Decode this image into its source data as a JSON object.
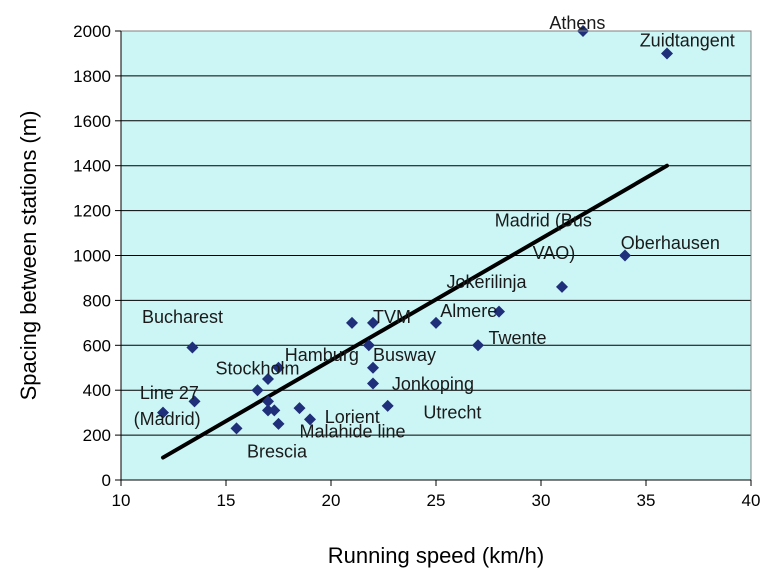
{
  "chart_data": {
    "type": "scatter",
    "title": "",
    "xlabel": "Running speed (km/h)",
    "ylabel": "Spacing between stations (m)",
    "xlim": [
      10,
      40
    ],
    "ylim": [
      0,
      2000
    ],
    "xticks": [
      10,
      15,
      20,
      25,
      30,
      35,
      40
    ],
    "yticks": [
      0,
      200,
      400,
      600,
      800,
      1000,
      1200,
      1400,
      1600,
      1800,
      2000
    ],
    "grid": "horizontal",
    "colors": {
      "plot_bg": "#ccf5f5",
      "marker": "#1f2f7a",
      "trend": "#000000",
      "grid": "#000000"
    },
    "points": [
      {
        "x": 32,
        "y": 2000
      },
      {
        "x": 36,
        "y": 1900
      },
      {
        "x": 34,
        "y": 1000
      },
      {
        "x": 31,
        "y": 860
      },
      {
        "x": 28,
        "y": 750
      },
      {
        "x": 25,
        "y": 700
      },
      {
        "x": 21,
        "y": 700
      },
      {
        "x": 22,
        "y": 700
      },
      {
        "x": 27,
        "y": 600
      },
      {
        "x": 13.4,
        "y": 590
      },
      {
        "x": 21.8,
        "y": 600
      },
      {
        "x": 22,
        "y": 500
      },
      {
        "x": 22,
        "y": 430
      },
      {
        "x": 17.5,
        "y": 500
      },
      {
        "x": 17,
        "y": 450
      },
      {
        "x": 16.5,
        "y": 400
      },
      {
        "x": 13.5,
        "y": 350
      },
      {
        "x": 12,
        "y": 300
      },
      {
        "x": 17,
        "y": 350
      },
      {
        "x": 17,
        "y": 310
      },
      {
        "x": 17.3,
        "y": 310
      },
      {
        "x": 18.5,
        "y": 320
      },
      {
        "x": 19,
        "y": 270
      },
      {
        "x": 22.7,
        "y": 330
      },
      {
        "x": 17.5,
        "y": 250
      },
      {
        "x": 15.5,
        "y": 230
      }
    ],
    "trendline": [
      {
        "x": 12,
        "y": 100
      },
      {
        "x": 36,
        "y": 1400
      }
    ],
    "annotations": [
      {
        "text": "Athens",
        "x": 30.4,
        "y": 2010
      },
      {
        "text": "Zuidtangent",
        "x": 34.7,
        "y": 1930
      },
      {
        "text": "Madrid (Bus",
        "x": 27.8,
        "y": 1130
      },
      {
        "text": "VAO)",
        "x": 29.6,
        "y": 985
      },
      {
        "text": "Oberhausen",
        "x": 33.8,
        "y": 1030
      },
      {
        "text": "Jokerilinja",
        "x": 25.5,
        "y": 855
      },
      {
        "text": "TVM",
        "x": 22,
        "y": 700
      },
      {
        "text": "Almere",
        "x": 25.2,
        "y": 725
      },
      {
        "text": "Bucharest",
        "x": 11,
        "y": 700
      },
      {
        "text": "Twente",
        "x": 27.5,
        "y": 605
      },
      {
        "text": "Hamburg",
        "x": 17.8,
        "y": 530
      },
      {
        "text": "Busway",
        "x": 22,
        "y": 530
      },
      {
        "text": "Stockholm",
        "x": 14.5,
        "y": 470
      },
      {
        "text": "Jonkoping",
        "x": 22.9,
        "y": 400
      },
      {
        "text": "Line 27",
        "x": 10.9,
        "y": 360
      },
      {
        "text": "(Madrid)",
        "x": 10.6,
        "y": 245
      },
      {
        "text": "Utrecht",
        "x": 24.4,
        "y": 275
      },
      {
        "text": "Lorient",
        "x": 19.7,
        "y": 255
      },
      {
        "text": "Malahide line",
        "x": 18.5,
        "y": 190
      },
      {
        "text": "Brescia",
        "x": 16,
        "y": 100
      }
    ]
  }
}
